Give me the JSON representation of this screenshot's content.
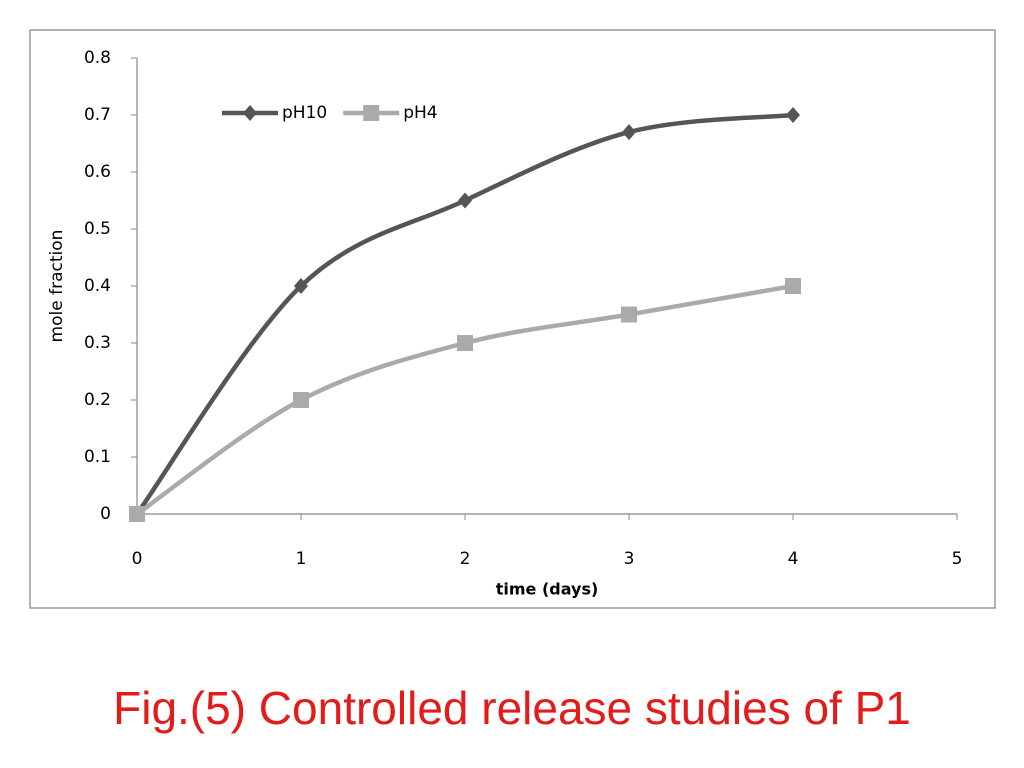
{
  "chart_data": {
    "type": "line",
    "title": "Fig.(5) Controlled release studies of P1",
    "x_label": "time (days)",
    "y_label": "mole fraction",
    "x": [
      0,
      1,
      2,
      3,
      4
    ],
    "series": [
      {
        "name": "pH10",
        "color": "#555555",
        "marker": "diamond",
        "values": [
          0,
          0.4,
          0.55,
          0.67,
          0.7
        ]
      },
      {
        "name": "pH4",
        "color": "#aaaaaa",
        "marker": "square",
        "values": [
          0,
          0.2,
          0.3,
          0.35,
          0.4
        ]
      }
    ],
    "xlim": [
      0,
      5
    ],
    "xticks": [
      0,
      1,
      2,
      3,
      4,
      5
    ],
    "ylim": [
      0,
      0.8
    ],
    "yticks": [
      0,
      0.1,
      0.2,
      0.3,
      0.4,
      0.5,
      0.6,
      0.7,
      0.8
    ],
    "grid": false,
    "legend": "top-left",
    "smooth": true
  }
}
